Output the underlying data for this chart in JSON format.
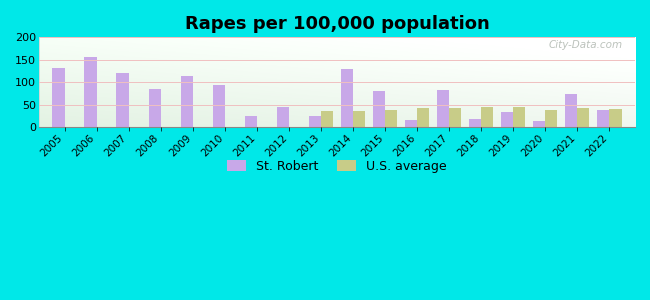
{
  "title": "Rapes per 100,000 population",
  "years": [
    2005,
    2006,
    2007,
    2008,
    2009,
    2010,
    2011,
    2012,
    2013,
    2014,
    2015,
    2016,
    2017,
    2018,
    2019,
    2020,
    2021,
    2022
  ],
  "st_robert": [
    132,
    156,
    121,
    86,
    115,
    93,
    26,
    46,
    25,
    130,
    81,
    16,
    82,
    18,
    34,
    15,
    75,
    38
  ],
  "us_average": [
    null,
    null,
    null,
    null,
    null,
    null,
    null,
    null,
    36,
    37,
    38,
    42,
    42,
    44,
    45,
    38,
    43,
    41
  ],
  "bar_color_city": "#c8a8e8",
  "bar_color_us": "#c8cc88",
  "background_outer": "#00e8e8",
  "background_inner_topleft": "#f0f8f0",
  "background_inner_bottomright": "#d0e8d0",
  "ylim": [
    0,
    200
  ],
  "yticks": [
    0,
    50,
    100,
    150,
    200
  ],
  "legend_city": "St. Robert",
  "legend_us": "U.S. average",
  "bar_width": 0.38,
  "title_fontsize": 13,
  "watermark": "City-Data.com"
}
